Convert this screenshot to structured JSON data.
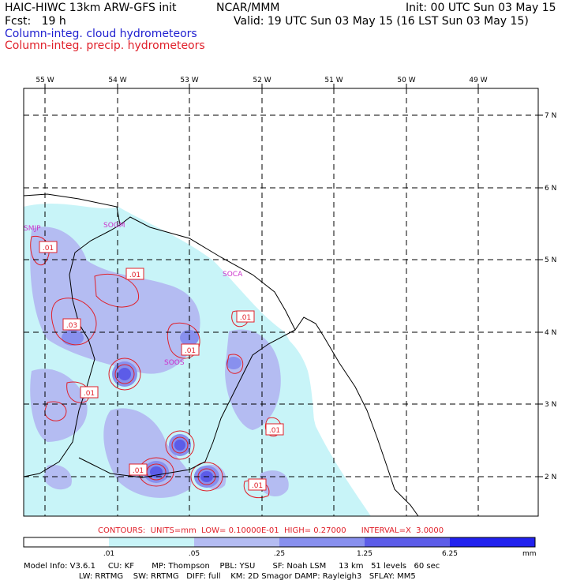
{
  "header": {
    "model_title": "HAIC-HIWC 13km ARW-GFS init",
    "org": "NCAR/MMM",
    "init": "Init: 00 UTC Sun 03 May 15",
    "fcst": "Fcst:   19 h",
    "valid": "Valid: 19 UTC Sun 03 May 15 (16 LST Sun 03 May 15)",
    "field1": "Column-integ. cloud hydrometeors",
    "field2": "Column-integ. precip. hydrometeors"
  },
  "axes": {
    "lon_labels": [
      "55 W",
      "54 W",
      "53 W",
      "52 W",
      "51 W",
      "50 W",
      "49 W"
    ],
    "lat_labels": [
      "7 N",
      "6 N",
      "5 N",
      "4 N",
      "3 N",
      "2 N"
    ]
  },
  "stations": [
    "SMJP",
    "SOGM",
    "SOCA",
    "SOOS"
  ],
  "contour_labels": [
    ".01",
    ".01",
    ".01",
    ".03",
    ".01",
    ".01",
    ".01",
    ".01",
    ".01"
  ],
  "contour_info": "CONTOURS:  UNITS=mm  LOW= 0.10000E-01  HIGH= 0.27000      INTERVAL=X  3.0000",
  "colorbar": {
    "ticks": [
      ".01",
      ".05",
      ".25",
      "1.25",
      "6.25"
    ],
    "unit": "mm",
    "colors": [
      "#ffffff",
      "#c8f4f8",
      "#b4bcf2",
      "#8890ee",
      "#5c5ce8",
      "#2222ee"
    ]
  },
  "footer": {
    "line1": "Model Info: V3.6.1     CU: KF       MP: Thompson    PBL: YSU       SF: Noah LSM     13 km   51 levels   60 sec",
    "line2": "                      LW: RRTMG    SW: RRTMG   DIFF: full    KM: 2D Smagor DAMP: Rayleigh3   SFLAY: MM5"
  }
}
